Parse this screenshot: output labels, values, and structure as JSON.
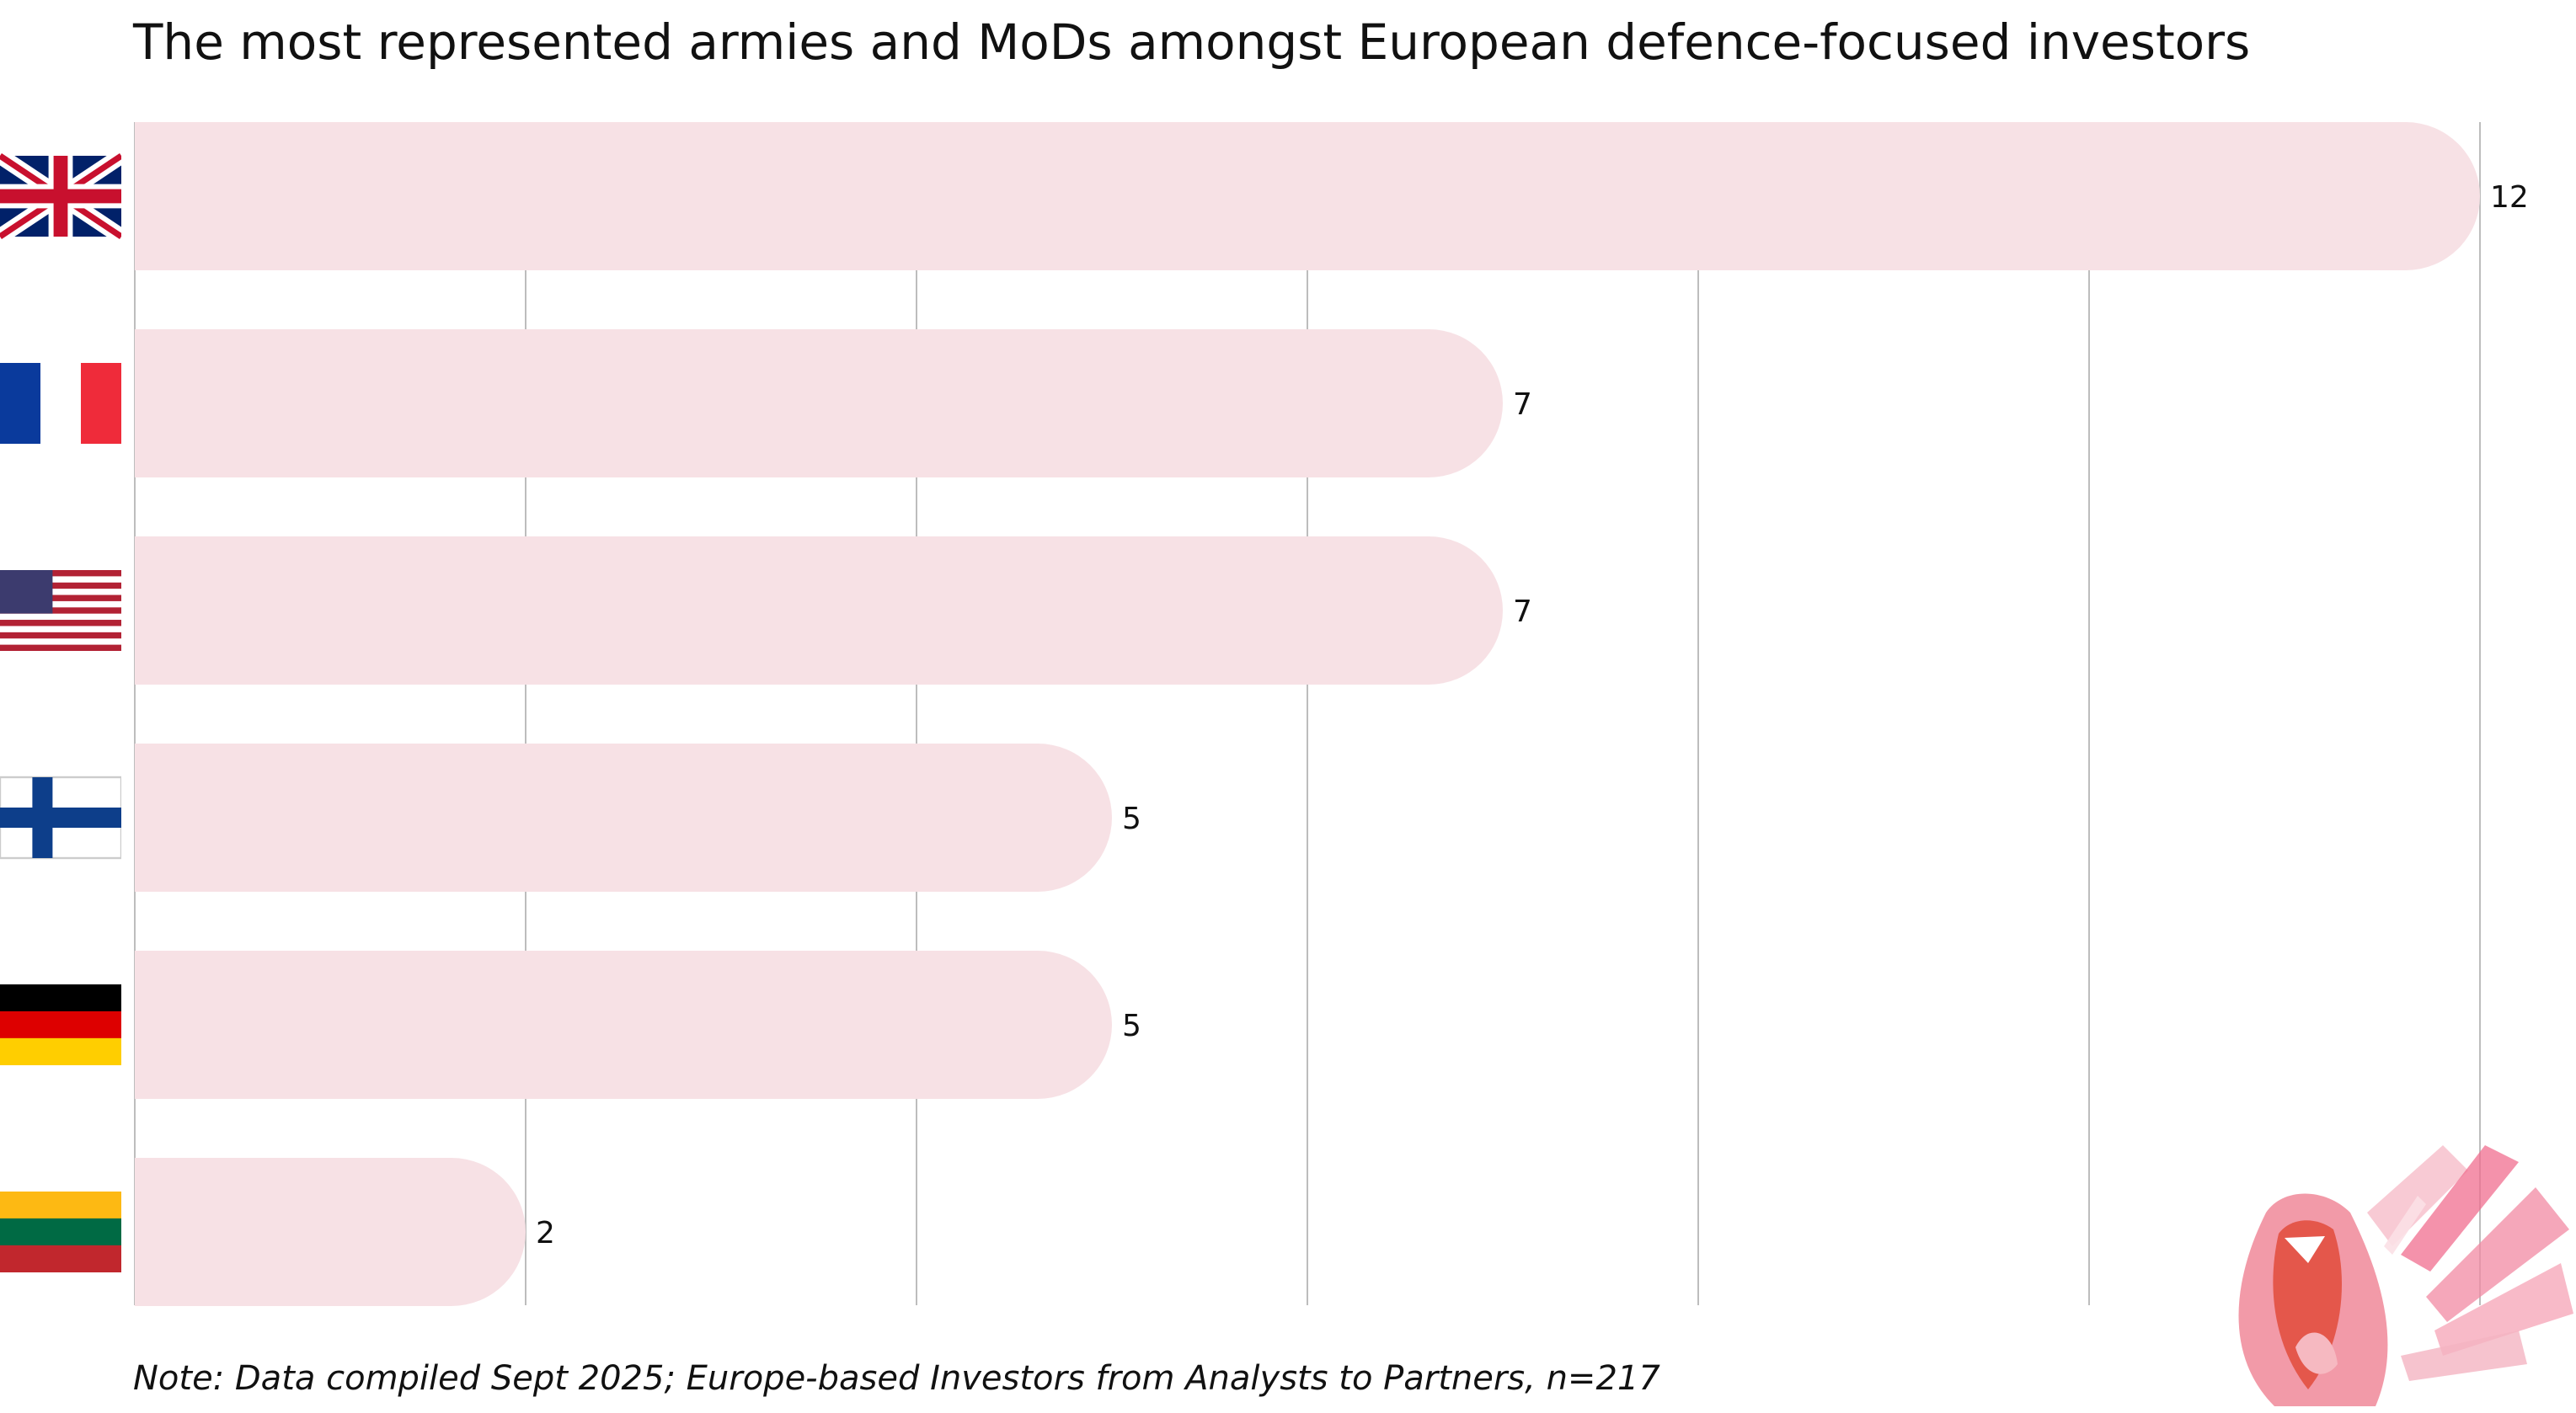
{
  "chart_data": {
    "type": "bar",
    "orientation": "horizontal",
    "title": "The most represented armies and MoDs amongst European defence-focused investors",
    "categories": [
      "United Kingdom",
      "France",
      "United States",
      "Finland",
      "Germany",
      "Lithuania"
    ],
    "category_icons": [
      "uk-flag-icon",
      "france-flag-icon",
      "usa-flag-icon",
      "finland-flag-icon",
      "germany-flag-icon",
      "lithuania-flag-icon"
    ],
    "values": [
      12,
      7,
      7,
      5,
      5,
      2
    ],
    "xlim": [
      0,
      12
    ],
    "grid": true,
    "xlabel": "",
    "ylabel": "",
    "bar_color": "#f7e1e5",
    "note": "Note: Data compiled Sept 2025; Europe-based Investors from Analysts to Partners, n=217"
  }
}
